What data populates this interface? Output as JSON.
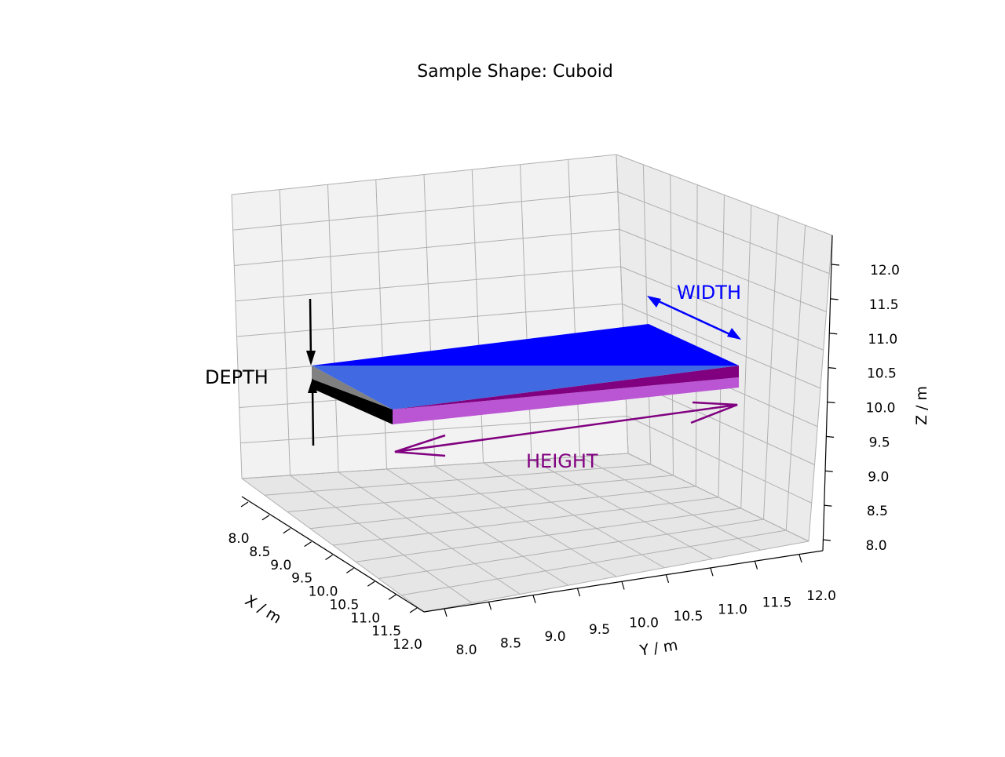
{
  "chart_data": {
    "type": "3d-shape",
    "title": "Sample Shape: Cuboid",
    "xlabel": "X / m",
    "ylabel": "Y / m",
    "zlabel": "Z / m",
    "xlim": [
      8.0,
      12.0
    ],
    "ylim": [
      8.0,
      12.0
    ],
    "zlim": [
      8.0,
      12.0
    ],
    "xticks": [
      "8.0",
      "8.5",
      "9.0",
      "9.5",
      "10.0",
      "10.5",
      "11.0",
      "11.5",
      "12.0"
    ],
    "yticks": [
      "8.0",
      "8.5",
      "9.0",
      "9.5",
      "10.0",
      "10.5",
      "11.0",
      "11.5",
      "12.0"
    ],
    "zticks": [
      "8.0",
      "8.5",
      "9.0",
      "9.5",
      "10.0",
      "10.5",
      "11.0",
      "11.5",
      "12.0"
    ],
    "grid": true,
    "annotations": {
      "width": {
        "text": "WIDTH",
        "color": "#0000ff"
      },
      "height": {
        "text": "HEIGHT",
        "color": "#800080"
      },
      "depth": {
        "text": "DEPTH",
        "color": "#000000"
      }
    },
    "face_colors": {
      "top_a": "#0000ff",
      "top_b": "#4169e1",
      "front": "#ba55d3",
      "side": "#800080",
      "left_a": "#808080",
      "left_b": "#000000"
    }
  }
}
